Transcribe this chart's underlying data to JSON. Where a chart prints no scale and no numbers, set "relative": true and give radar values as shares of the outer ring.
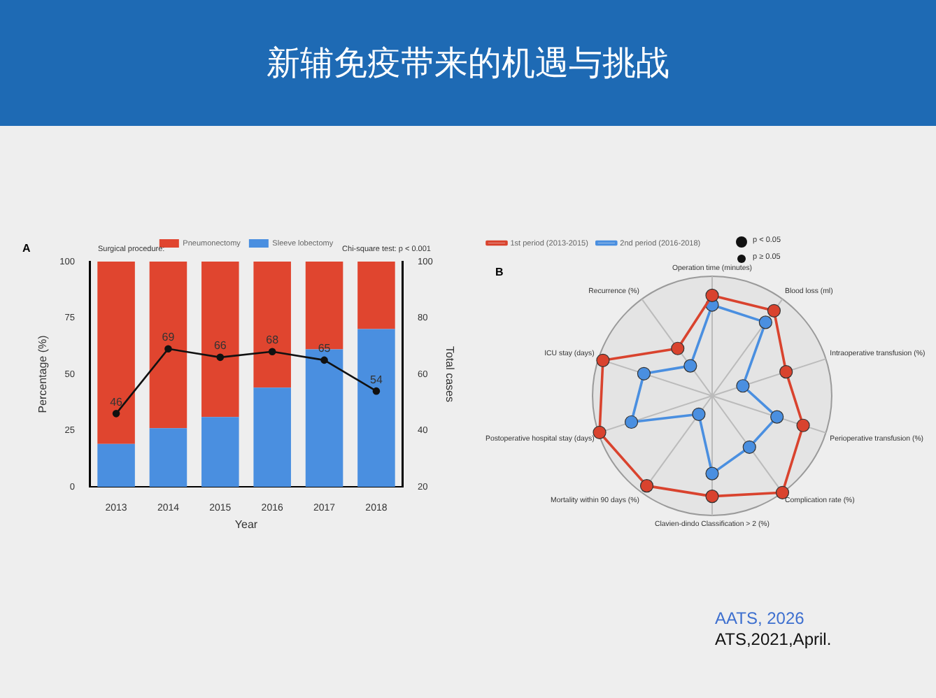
{
  "chart_data": [
    {
      "type": "bar",
      "title": "新辅免疫带来的机遇与挑战",
      "annotations": [
        "A",
        "Chi-square test: p < 0.001"
      ],
      "legend_title": "Surgical procedure:",
      "xlabel": "Year",
      "ylabel": "Percentage (%)",
      "y2label": "Total cases",
      "categories": [
        "2013",
        "2014",
        "2015",
        "2016",
        "2017",
        "2018"
      ],
      "stacked": true,
      "legend": "top",
      "series": [
        {
          "name": "Sleeve lobectomy",
          "color": "#4a8fe0",
          "values": [
            19,
            26,
            31,
            44,
            61,
            70
          ]
        },
        {
          "name": "Pneumonectomy",
          "color": "#e0452f",
          "values": [
            81,
            74,
            69,
            56,
            39,
            30
          ]
        },
        {
          "type": "line",
          "axis": "y2",
          "color": "#111111",
          "marker": "circle",
          "values": [
            46,
            69,
            66,
            68,
            65,
            54
          ],
          "value_labels": [
            "46",
            "69",
            "66",
            "68",
            "65",
            "54"
          ]
        }
      ],
      "ylim": [
        0,
        100
      ],
      "yticks": [
        0,
        25,
        50,
        75,
        100
      ],
      "y2lim": [
        20,
        100
      ],
      "y2ticks": [
        20,
        40,
        60,
        80,
        100
      ],
      "grid": false
    },
    {
      "type": "radar",
      "relative": true,
      "annotations": [
        "B",
        "p < 0.05",
        "p ≥ 0.05",
        "AATS, 2026",
        "ATS,2021,April."
      ],
      "legend": "top",
      "marker": "circle",
      "grid": true,
      "categories": [
        "Operation time (minutes)",
        "Blood loss (ml)",
        "Intraoperative transfusion (%)",
        "Perioperative transfusion (%)",
        "Complication rate (%)",
        "Clavien-dindo Classification > 2 (%)",
        "Mortality within 90 days (%)",
        "Postoperative hospital stay (days)",
        "ICU stay (days)",
        "Recurrence (%)"
      ],
      "series": [
        {
          "name": "1st period (2013-2015)",
          "color": "#d9432e",
          "values": [
            0.84,
            0.88,
            0.65,
            0.8,
            1.0,
            0.84,
            0.93,
            0.99,
            0.96,
            0.49
          ]
        },
        {
          "name": "2nd period (2016-2018)",
          "color": "#4a8fe0",
          "values": [
            0.76,
            0.76,
            0.27,
            0.57,
            0.53,
            0.65,
            0.19,
            0.71,
            0.6,
            0.31
          ]
        }
      ]
    }
  ]
}
